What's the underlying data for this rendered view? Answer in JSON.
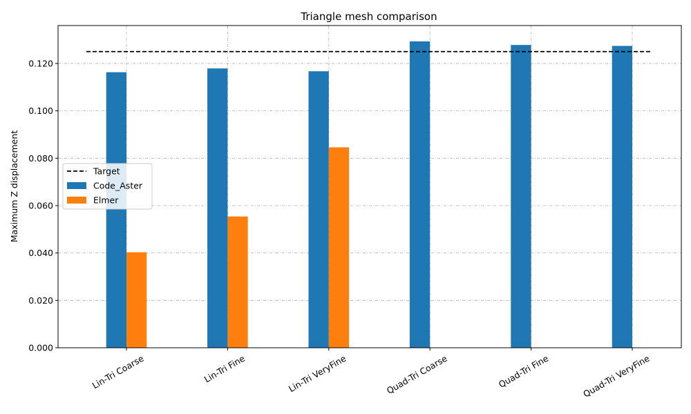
{
  "chart_data": {
    "type": "bar",
    "title": "Triangle mesh comparison",
    "xlabel": "",
    "ylabel": "Maximum Z displacement",
    "categories": [
      "Lin-Tri Coarse",
      "Lin-Tri Fine",
      "Lin-Tri VeryFine",
      "Quad-Tri Coarse",
      "Quad-Tri Fine",
      "Quad-Tri VeryFine"
    ],
    "series": [
      {
        "name": "Code_Aster",
        "color": "#1f77b4",
        "values": [
          0.1163,
          0.1179,
          0.1167,
          0.1293,
          0.1278,
          0.1274
        ]
      },
      {
        "name": "Elmer",
        "color": "#ff7f0e",
        "values": [
          0.0403,
          0.0554,
          0.0846,
          null,
          null,
          null
        ]
      }
    ],
    "reference_line": {
      "name": "Target",
      "value": 0.125,
      "color": "#000000",
      "style": "dashed"
    },
    "ylim": [
      0,
      0.136
    ],
    "yticks": [
      "0.000",
      "0.020",
      "0.040",
      "0.060",
      "0.080",
      "0.100",
      "0.120"
    ],
    "grid": true,
    "legend_position": "center-left"
  }
}
